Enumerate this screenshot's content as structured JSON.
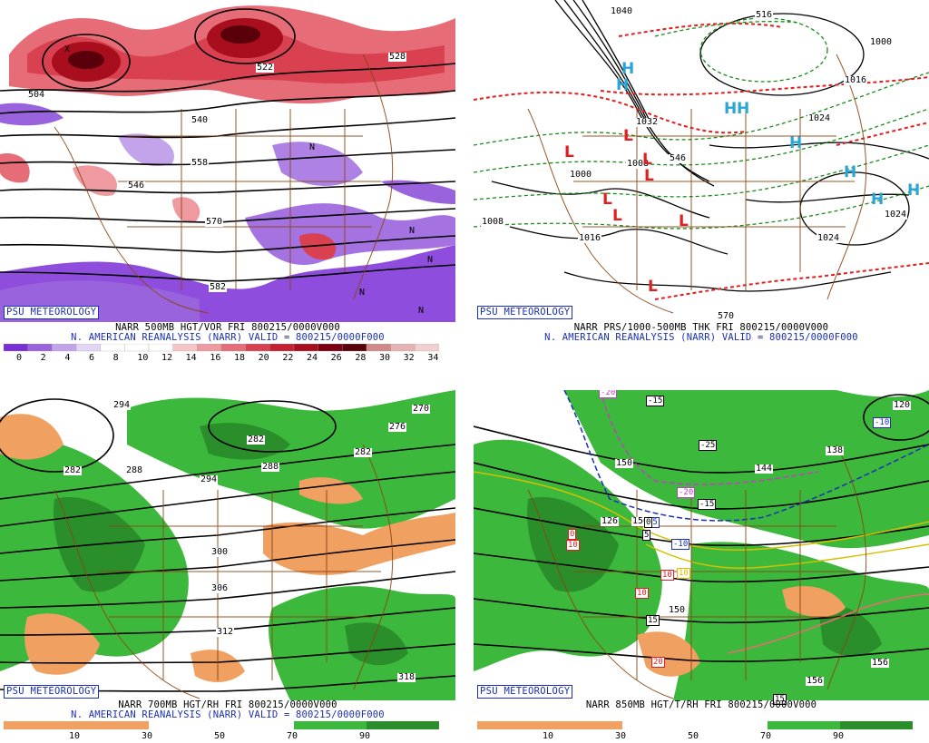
{
  "watermark": "PSU METEOROLOGY",
  "panels": {
    "tl": {
      "caption1": "NARR 500MB HGT/VOR FRI 800215/0000V000",
      "caption2": "N. AMERICAN REANALYSIS (NARR) VALID = 800215/0000F000",
      "contour_labels": [
        "504",
        "522",
        "540",
        "558",
        "570",
        "582",
        "528",
        "546"
      ],
      "markers": [
        "X",
        "N",
        "N",
        "N",
        "N",
        "N"
      ],
      "colorbar_ticks": [
        "0",
        "2",
        "4",
        "6",
        "8",
        "10",
        "12",
        "14",
        "16",
        "18",
        "20",
        "22",
        "24",
        "26",
        "28",
        "30",
        "32",
        "34"
      ],
      "colors": [
        "#7a2ed6",
        "#9a63de",
        "#c3a4ea",
        "#e3d6f5",
        "#ffffff",
        "#ffffff",
        "#ffffff",
        "#f5c5c8",
        "#ef9aa1",
        "#e66d77",
        "#d94050",
        "#c52030",
        "#a80e1e",
        "#7e0010",
        "#5a000a",
        "#d08a8a",
        "#e6b3b3",
        "#f2d0d0"
      ]
    },
    "tr": {
      "caption1": "NARR PRS/1000-500MB THK FRI 800215/0000V000",
      "caption2": "N. AMERICAN REANALYSIS (NARR) VALID = 800215/0000F000",
      "contour_labels": [
        "1040",
        "516",
        "1000",
        "1016",
        "1024",
        "1032",
        "1000",
        "1008",
        "1016",
        "1024",
        "1024",
        "570",
        "546",
        "1008"
      ],
      "highs": [
        "H",
        "H",
        "H",
        "H",
        "H",
        "H",
        "H",
        "H"
      ],
      "lows": [
        "L",
        "L",
        "L",
        "L",
        "L",
        "L",
        "L",
        "L"
      ]
    },
    "bl": {
      "caption1": "NARR 700MB HGT/RH FRI 800215/0000V000",
      "caption2": "N. AMERICAN REANALYSIS (NARR) VALID = 800215/0000F000",
      "contour_labels": [
        "294",
        "276",
        "270",
        "282",
        "282",
        "288",
        "294",
        "300",
        "306",
        "312",
        "318",
        "282",
        "288"
      ],
      "colorbar_ticks": [
        "10",
        "30",
        "50",
        "70",
        "90"
      ]
    },
    "br": {
      "caption1": "NARR 850MB HGT/T/RH FRI 800215/0000V000",
      "contour_labels": [
        "120",
        "138",
        "144",
        "150",
        "126",
        "150",
        "156",
        "156",
        "150"
      ],
      "temp_boxes": [
        "-20",
        "-15",
        "-10",
        "-25",
        "-20",
        "-15",
        "-5",
        "-10",
        "0",
        "5",
        "10",
        "10",
        "10",
        "10",
        "15",
        "20",
        "15",
        "0"
      ],
      "colorbar_ticks": [
        "10",
        "30",
        "50",
        "70",
        "90"
      ]
    }
  }
}
